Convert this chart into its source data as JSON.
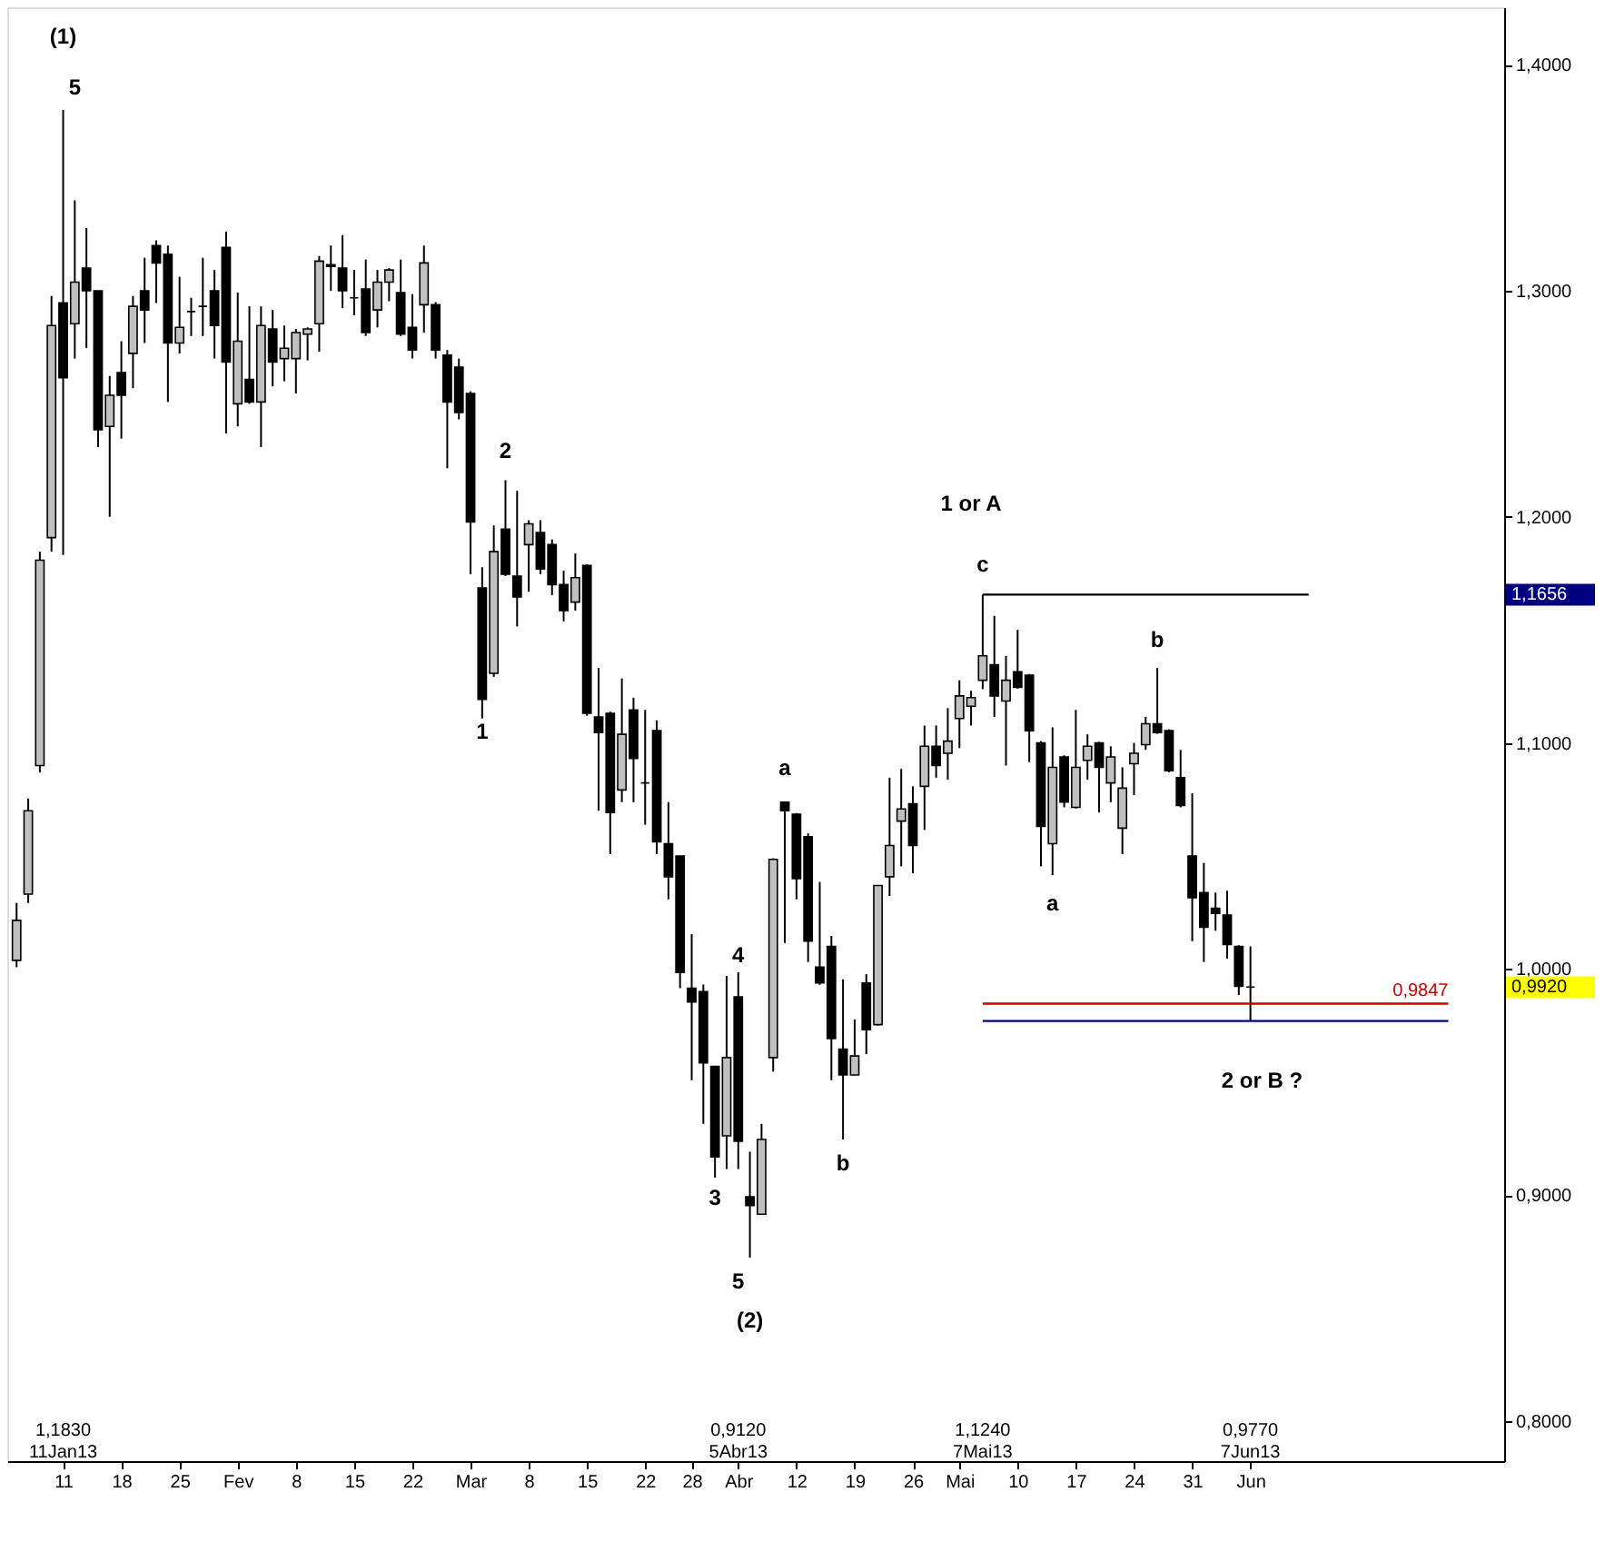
{
  "chart_data": {
    "type": "candlestick",
    "categories": [
      null,
      null,
      null,
      null,
      "11",
      null,
      null,
      null,
      null,
      "18",
      null,
      null,
      null,
      null,
      "25",
      null,
      null,
      null,
      null,
      "Fev",
      null,
      null,
      null,
      null,
      "8",
      null,
      null,
      null,
      null,
      "15",
      null,
      null,
      null,
      null,
      "22",
      null,
      null,
      null,
      null,
      "Mar",
      null,
      null,
      null,
      null,
      "8",
      null,
      null,
      null,
      null,
      "15",
      null,
      null,
      null,
      null,
      "22",
      null,
      null,
      null,
      "28",
      null,
      null,
      null,
      "Abr",
      null,
      null,
      null,
      null,
      "12",
      null,
      null,
      null,
      null,
      "19",
      null,
      null,
      null,
      null,
      "26",
      null,
      null,
      null,
      "Mai",
      null,
      null,
      null,
      null,
      "10",
      null,
      null,
      null,
      null,
      "17",
      null,
      null,
      null,
      null,
      "24",
      null,
      null,
      null,
      null,
      "31",
      null,
      null,
      null,
      null,
      "Jun",
      null,
      null,
      null,
      null,
      null,
      null,
      null,
      null,
      null,
      null,
      null,
      null,
      null,
      null,
      null,
      null,
      null,
      null,
      null,
      null,
      null
    ],
    "ohlc": [
      [
        1.0038,
        1.0292,
        1.0008,
        1.0215
      ],
      [
        1.0331,
        1.0754,
        1.0292,
        1.07
      ],
      [
        1.09,
        1.1846,
        1.0869,
        1.1808
      ],
      [
        1.1908,
        1.2977,
        1.1846,
        1.2846
      ],
      [
        1.2946,
        1.38,
        1.1831,
        1.2615
      ],
      [
        1.2854,
        1.34,
        1.27,
        1.3038
      ],
      [
        1.31,
        1.3277,
        1.2746,
        1.3
      ],
      [
        1.3,
        1.3,
        1.2308,
        1.2385
      ],
      [
        1.24,
        1.2623,
        1.2,
        1.2538
      ],
      [
        1.2638,
        1.2777,
        1.2346,
        1.2538
      ],
      [
        1.2723,
        1.2977,
        1.2569,
        1.2931
      ],
      [
        1.3,
        1.3146,
        1.2769,
        1.2915
      ],
      [
        1.32,
        1.3223,
        1.2946,
        1.3123
      ],
      [
        1.3162,
        1.32,
        1.2508,
        1.2769
      ],
      [
        1.2769,
        1.3062,
        1.2723,
        1.2838
      ],
      [
        1.2908,
        1.2969,
        1.28,
        1.2908
      ],
      [
        1.2931,
        1.3146,
        1.28,
        1.2931
      ],
      [
        1.3,
        1.3092,
        1.27,
        1.2846
      ],
      [
        1.3192,
        1.3262,
        1.2369,
        1.2685
      ],
      [
        1.25,
        1.2992,
        1.24,
        1.2777
      ],
      [
        1.2608,
        1.2931,
        1.25,
        1.2508
      ],
      [
        1.2508,
        1.2931,
        1.2308,
        1.2846
      ],
      [
        1.2831,
        1.2915,
        1.2577,
        1.2685
      ],
      [
        1.27,
        1.2846,
        1.26,
        1.2746
      ],
      [
        1.27,
        1.2831,
        1.2546,
        1.2815
      ],
      [
        1.2808,
        1.2838,
        1.2692,
        1.2831
      ],
      [
        1.2854,
        1.3154,
        1.2731,
        1.3131
      ],
      [
        1.3115,
        1.32,
        1.3,
        1.3108
      ],
      [
        1.31,
        1.3246,
        1.2923,
        1.3
      ],
      [
        1.2969,
        1.3092,
        1.2892,
        1.2969
      ],
      [
        1.3008,
        1.3138,
        1.28,
        1.2815
      ],
      [
        1.2915,
        1.3092,
        1.2838,
        1.3038
      ],
      [
        1.3038,
        1.31,
        1.2954,
        1.3092
      ],
      [
        1.2992,
        1.3138,
        1.28,
        1.2808
      ],
      [
        1.2838,
        1.2985,
        1.27,
        1.2738
      ],
      [
        1.2938,
        1.32,
        1.2815,
        1.3123
      ],
      [
        1.2938,
        1.295,
        1.27,
        1.2738
      ],
      [
        1.2715,
        1.2738,
        1.2215,
        1.2508
      ],
      [
        1.2662,
        1.27,
        1.2431,
        1.2462
      ],
      [
        1.2546,
        1.2555,
        1.1746,
        1.1977
      ],
      [
        1.1685,
        1.1777,
        1.1108,
        1.1192
      ],
      [
        1.1308,
        1.1962,
        1.1292,
        1.1846
      ],
      [
        1.1946,
        1.2162,
        1.1738,
        1.1746
      ],
      [
        1.1738,
        1.2115,
        1.1515,
        1.1646
      ],
      [
        1.1877,
        1.1985,
        1.1669,
        1.1969
      ],
      [
        1.1931,
        1.1985,
        1.1746,
        1.1769
      ],
      [
        1.1877,
        1.19,
        1.1654,
        1.17
      ],
      [
        1.17,
        1.1762,
        1.1538,
        1.1585
      ],
      [
        1.1623,
        1.1838,
        1.1585,
        1.1731
      ],
      [
        1.1785,
        1.179,
        1.112,
        1.1131
      ],
      [
        1.1115,
        1.1331,
        1.07,
        1.1046
      ],
      [
        1.1131,
        1.1138,
        1.0508,
        1.0692
      ],
      [
        1.0792,
        1.1285,
        1.0738,
        1.1038
      ],
      [
        1.1146,
        1.12,
        1.0738,
        1.0931
      ],
      [
        1.0823,
        1.1146,
        1.0638,
        1.0823
      ],
      [
        1.1054,
        1.11,
        1.0508,
        1.0562
      ],
      [
        1.0554,
        1.0738,
        1.0308,
        1.0408
      ],
      [
        1.05,
        1.05,
        0.9915,
        0.9985
      ],
      [
        0.9915,
        1.0154,
        0.9508,
        0.9854
      ],
      [
        0.99,
        0.9931,
        0.9315,
        0.9585
      ],
      [
        0.9569,
        0.9569,
        0.9077,
        0.9169
      ],
      [
        0.9262,
        0.9969,
        0.9115,
        0.9608
      ],
      [
        0.9877,
        0.9985,
        0.9115,
        0.9238
      ],
      [
        0.8992,
        0.9192,
        0.8723,
        0.8954
      ],
      [
        0.8915,
        0.9315,
        0.8915,
        0.9246
      ],
      [
        0.9608,
        1.049,
        0.9546,
        1.0485
      ],
      [
        1.0738,
        1.0738,
        1.0115,
        1.07
      ],
      [
        1.0685,
        1.069,
        1.0308,
        1.04
      ],
      [
        1.0585,
        1.06,
        1.0031,
        1.0123
      ],
      [
        1.0008,
        1.0385,
        0.993,
        0.9938
      ],
      [
        1.01,
        1.0146,
        0.9508,
        0.9692
      ],
      [
        0.9646,
        0.9954,
        0.9246,
        0.9531
      ],
      [
        0.9531,
        0.9777,
        0.953,
        0.9615
      ],
      [
        0.9938,
        0.9977,
        0.9623,
        0.9731
      ],
      [
        0.9754,
        1.037,
        0.975,
        1.0369
      ],
      [
        1.0408,
        1.0846,
        1.0323,
        1.0546
      ],
      [
        1.0654,
        1.0885,
        1.0454,
        1.0708
      ],
      [
        1.0731,
        1.0808,
        1.0423,
        1.0546
      ],
      [
        1.0808,
        1.1077,
        1.0615,
        1.0985
      ],
      [
        1.0985,
        1.1077,
        1.0846,
        1.09
      ],
      [
        1.0954,
        1.1154,
        1.0838,
        1.1008
      ],
      [
        1.1108,
        1.1277,
        1.0977,
        1.1208
      ],
      [
        1.1162,
        1.1231,
        1.1077,
        1.12
      ],
      [
        1.1277,
        1.1656,
        1.1238,
        1.1385
      ],
      [
        1.1346,
        1.1562,
        1.1115,
        1.1208
      ],
      [
        1.1185,
        1.1385,
        1.09,
        1.1277
      ],
      [
        1.1315,
        1.15,
        1.124,
        1.1246
      ],
      [
        1.13,
        1.1305,
        1.0915,
        1.1054
      ],
      [
        1.1,
        1.1008,
        1.0454,
        1.0631
      ],
      [
        1.0554,
        1.1069,
        1.0415,
        1.0892
      ],
      [
        1.0938,
        1.0945,
        1.0715,
        1.0738
      ],
      [
        1.0715,
        1.1146,
        1.071,
        1.0892
      ],
      [
        1.0923,
        1.1038,
        1.0838,
        1.0985
      ],
      [
        1.1,
        1.1005,
        1.0692,
        1.0892
      ],
      [
        1.0823,
        1.0985,
        1.0738,
        1.0938
      ],
      [
        1.0623,
        1.0892,
        1.0508,
        1.08
      ],
      [
        1.0908,
        1.1,
        1.0769,
        1.0954
      ],
      [
        1.0992,
        1.1115,
        1.0969,
        1.1085
      ],
      [
        1.1085,
        1.1331,
        1.104,
        1.1046
      ],
      [
        1.1054,
        1.106,
        1.087,
        1.0877
      ],
      [
        1.0846,
        1.0969,
        1.0715,
        1.0723
      ],
      [
        1.05,
        1.0777,
        1.0123,
        1.0315
      ],
      [
        1.0338,
        1.0469,
        1.0031,
        1.0185
      ],
      [
        1.0269,
        1.0338,
        1.0169,
        1.0246
      ],
      [
        1.0238,
        1.0346,
        1.0046,
        1.0108
      ],
      [
        1.01,
        1.0105,
        0.9885,
        0.9923
      ],
      [
        0.992,
        1.01,
        0.977,
        0.992
      ],
      null,
      null,
      null,
      null,
      null,
      null,
      null,
      null,
      null,
      null,
      null,
      null,
      null,
      null,
      null,
      null,
      null,
      null,
      null,
      null,
      null
    ],
    "colors": [
      "#c0c0c0",
      "#c0c0c0",
      "#c0c0c0",
      "#c0c0c0",
      "#000000",
      "#c0c0c0",
      "#000000",
      "#000000",
      "#c0c0c0",
      "#000000",
      "#c0c0c0",
      "#000000",
      "#000000",
      "#000000",
      "#c0c0c0",
      "#000000",
      "#000000",
      "#000000",
      "#000000",
      "#c0c0c0",
      "#000000",
      "#c0c0c0",
      "#000000",
      "#c0c0c0",
      "#c0c0c0",
      "#c0c0c0",
      "#c0c0c0",
      "#000000",
      "#000000",
      "#000000",
      "#000000",
      "#c0c0c0",
      "#c0c0c0",
      "#000000",
      "#000000",
      "#c0c0c0",
      "#000000",
      "#000000",
      "#000000",
      "#000000",
      "#000000",
      "#c0c0c0",
      "#000000",
      "#000000",
      "#c0c0c0",
      "#000000",
      "#000000",
      "#000000",
      "#c0c0c0",
      "#000000",
      "#000000",
      "#000000",
      "#c0c0c0",
      "#000000",
      "#000000",
      "#000000",
      "#000000",
      "#000000",
      "#000000",
      "#000000",
      "#000000",
      "#c0c0c0",
      "#000000",
      "#000000",
      "#c0c0c0",
      "#c0c0c0",
      "#000000",
      "#000000",
      "#000000",
      "#000000",
      "#000000",
      "#000000",
      "#c0c0c0",
      "#000000",
      "#c0c0c0",
      "#c0c0c0",
      "#c0c0c0",
      "#000000",
      "#c0c0c0",
      "#000000",
      "#c0c0c0",
      "#c0c0c0",
      "#c0c0c0",
      "#c0c0c0",
      "#000000",
      "#c0c0c0",
      "#000000",
      "#000000",
      "#000000",
      "#c0c0c0",
      "#000000",
      "#c0c0c0",
      "#c0c0c0",
      "#000000",
      "#c0c0c0",
      "#c0c0c0",
      "#c0c0c0",
      "#c0c0c0",
      "#000000",
      "#000000",
      "#000000",
      "#000000",
      "#000000",
      "#000000",
      "#000000",
      "#000000",
      "#000000",
      null,
      null,
      null,
      null,
      null,
      null,
      null,
      null,
      null,
      null,
      null,
      null,
      null,
      null,
      null,
      null,
      null,
      null,
      null,
      null,
      null
    ],
    "series": [
      {
        "type": "line",
        "color": "#000000",
        "values": [
          null,
          null,
          null,
          null,
          null,
          null,
          null,
          null,
          null,
          null,
          null,
          null,
          null,
          null,
          null,
          null,
          null,
          null,
          null,
          null,
          null,
          null,
          null,
          null,
          null,
          null,
          null,
          null,
          null,
          null,
          null,
          null,
          null,
          null,
          null,
          null,
          null,
          null,
          null,
          null,
          null,
          null,
          null,
          null,
          null,
          null,
          null,
          null,
          null,
          null,
          null,
          null,
          null,
          null,
          null,
          null,
          null,
          null,
          null,
          null,
          null,
          null,
          null,
          null,
          null,
          null,
          null,
          null,
          null,
          null,
          null,
          null,
          null,
          null,
          null,
          null,
          null,
          null,
          null,
          null,
          null,
          null,
          null,
          1.1656,
          1.1656,
          1.1656,
          1.1656,
          1.1656,
          1.1656,
          1.1656,
          1.1656,
          1.1656,
          1.1656,
          1.1656,
          1.1656,
          1.1656,
          1.1656,
          1.1656,
          1.1656,
          1.1656,
          1.1656,
          1.1656,
          1.1656,
          1.1656,
          1.1656,
          1.1656,
          1.1656,
          1.1656,
          1.1656,
          1.1656,
          1.1656,
          1.1656,
          null,
          null,
          null,
          null,
          null,
          null,
          null,
          null,
          null,
          null,
          null,
          null,
          null,
          null,
          null,
          null
        ]
      },
      {
        "type": "line",
        "name": "0,9847",
        "color": "#cc0000",
        "values": [
          null,
          null,
          null,
          null,
          null,
          null,
          null,
          null,
          null,
          null,
          null,
          null,
          null,
          null,
          null,
          null,
          null,
          null,
          null,
          null,
          null,
          null,
          null,
          null,
          null,
          null,
          null,
          null,
          null,
          null,
          null,
          null,
          null,
          null,
          null,
          null,
          null,
          null,
          null,
          null,
          null,
          null,
          null,
          null,
          null,
          null,
          null,
          null,
          null,
          null,
          null,
          null,
          null,
          null,
          null,
          null,
          null,
          null,
          null,
          null,
          null,
          null,
          null,
          null,
          null,
          null,
          null,
          null,
          null,
          null,
          null,
          null,
          null,
          null,
          null,
          null,
          null,
          null,
          null,
          null,
          null,
          null,
          null,
          0.9847,
          0.9847,
          0.9847,
          0.9847,
          0.9847,
          0.9847,
          0.9847,
          0.9847,
          0.9847,
          0.9847,
          0.9847,
          0.9847,
          0.9847,
          0.9847,
          0.9847,
          0.9847,
          0.9847,
          0.9847,
          0.9847,
          0.9847,
          0.9847,
          0.9847,
          0.9847,
          0.9847,
          0.9847,
          0.9847,
          0.9847,
          0.9847,
          0.9847,
          0.9847,
          0.9847,
          0.9847,
          0.9847,
          0.9847,
          0.9847,
          0.9847,
          0.9847,
          0.9847,
          0.9847,
          0.9847,
          0.9847,
          null,
          null,
          null,
          null
        ]
      },
      {
        "type": "line",
        "color": "#000080",
        "values": [
          null,
          null,
          null,
          null,
          null,
          null,
          null,
          null,
          null,
          null,
          null,
          null,
          null,
          null,
          null,
          null,
          null,
          null,
          null,
          null,
          null,
          null,
          null,
          null,
          null,
          null,
          null,
          null,
          null,
          null,
          null,
          null,
          null,
          null,
          null,
          null,
          null,
          null,
          null,
          null,
          null,
          null,
          null,
          null,
          null,
          null,
          null,
          null,
          null,
          null,
          null,
          null,
          null,
          null,
          null,
          null,
          null,
          null,
          null,
          null,
          null,
          null,
          null,
          null,
          null,
          null,
          null,
          null,
          null,
          null,
          null,
          null,
          null,
          null,
          null,
          null,
          null,
          null,
          null,
          null,
          null,
          null,
          null,
          0.977,
          0.977,
          0.977,
          0.977,
          0.977,
          0.977,
          0.977,
          0.977,
          0.977,
          0.977,
          0.977,
          0.977,
          0.977,
          0.977,
          0.977,
          0.977,
          0.977,
          0.977,
          0.977,
          0.977,
          0.977,
          0.977,
          0.977,
          0.977,
          0.977,
          0.977,
          0.977,
          0.977,
          0.977,
          0.977,
          0.977,
          0.977,
          0.977,
          0.977,
          0.977,
          0.977,
          0.977,
          0.977,
          0.977,
          0.977,
          0.977,
          null,
          null,
          null,
          null
        ]
      }
    ],
    "ylim": [
      0.7823,
      1.4254
    ],
    "yticks": [
      {
        "value": 0.8,
        "label": "0,8000"
      },
      {
        "value": 0.9,
        "label": "0,9000"
      },
      {
        "value": 1.0,
        "label": "1,0000"
      },
      {
        "value": 1.1,
        "label": "1,1000"
      },
      {
        "value": 1.2,
        "label": "1,2000"
      },
      {
        "value": 1.3,
        "label": "1,3000"
      },
      {
        "value": 1.4,
        "label": "1,4000"
      }
    ],
    "grid": false,
    "annotations": [
      "(1)",
      "5",
      "2",
      "1",
      "3",
      "4",
      "5",
      "(2)",
      "a",
      "b",
      "1 or A",
      "c",
      "a",
      "b",
      "2 or B  ?",
      "1,1830\n11Jan13",
      "0,9120\n5Abr13",
      "1,1240\n7Mai13",
      "0,9770\n7Jun13",
      "1,1656",
      "0,9920"
    ]
  }
}
